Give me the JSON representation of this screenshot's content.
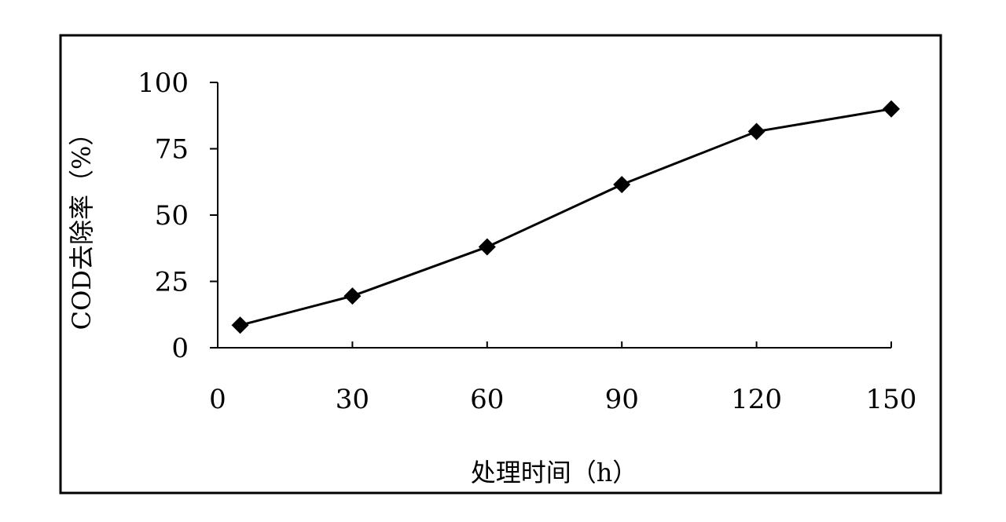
{
  "chart_data": {
    "type": "line",
    "title": "",
    "xlabel": "处理时间（h）",
    "ylabel": "COD去除率（%）",
    "x": [
      5,
      30,
      60,
      90,
      120,
      150
    ],
    "series": [
      {
        "values": [
          8.5,
          19.5,
          38,
          61.5,
          81.5,
          90
        ],
        "marker": "diamond",
        "color": "#000000"
      }
    ],
    "xlim": [
      0,
      150
    ],
    "ylim": [
      0,
      100
    ],
    "xticks": [
      0,
      30,
      60,
      90,
      120,
      150
    ],
    "yticks": [
      0,
      25,
      50,
      75,
      100
    ],
    "xtick_labels": [
      "0",
      "30",
      "60",
      "90",
      "120",
      "150"
    ],
    "ytick_labels": [
      "0",
      "25",
      "50",
      "75",
      "100"
    ],
    "grid": false,
    "legend": "none"
  }
}
